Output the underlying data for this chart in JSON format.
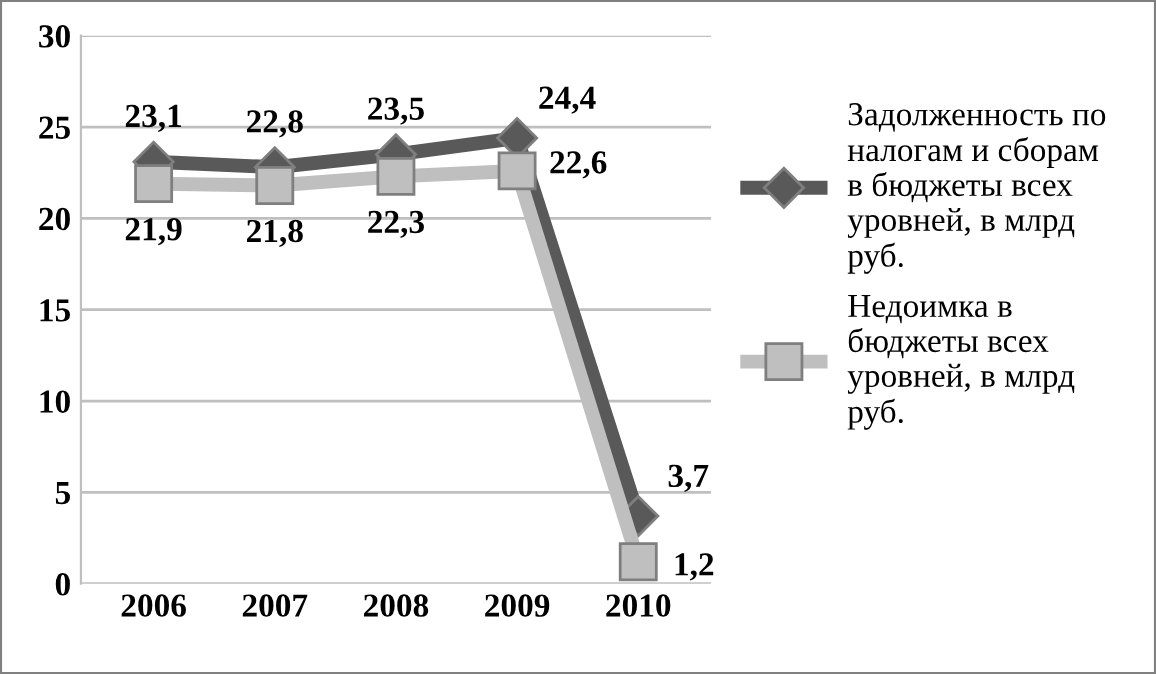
{
  "chart_data": {
    "type": "line",
    "categories": [
      "2006",
      "2007",
      "2008",
      "2009",
      "2010"
    ],
    "series": [
      {
        "name": "Задолженность по налогам и сборам в бюджеты всех уровней, в млрд руб.",
        "color": "#595959",
        "marker": "diamond",
        "values": [
          23.1,
          22.8,
          23.5,
          24.4,
          3.7
        ],
        "value_labels": [
          "23,1",
          "22,8",
          "23,5",
          "24,4",
          "3,7"
        ]
      },
      {
        "name": "Недоимка в бюджеты всех уровней, в млрд руб.",
        "color": "#bfbfbf",
        "marker": "square",
        "values": [
          21.9,
          21.8,
          22.3,
          22.6,
          1.2
        ],
        "value_labels": [
          "21,9",
          "21,8",
          "22,3",
          "22,6",
          "1,2"
        ]
      }
    ],
    "ylim": [
      0,
      30
    ],
    "yticks": [
      0,
      5,
      10,
      15,
      20,
      25,
      30
    ],
    "grid": "y",
    "legend": "right"
  }
}
